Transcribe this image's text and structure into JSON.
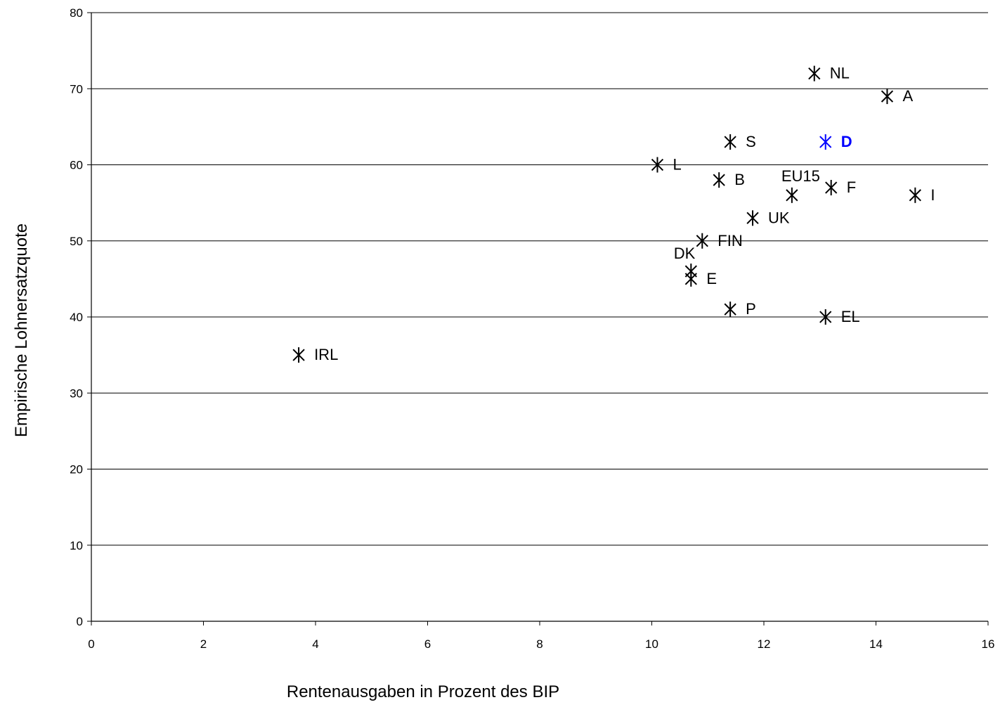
{
  "chart_data": {
    "type": "scatter",
    "title": "",
    "xlabel": "Rentenausgaben in Prozent des BIP",
    "ylabel": "Empirische Lohnersatzquote",
    "xlim": [
      0,
      16
    ],
    "ylim": [
      0,
      80
    ],
    "xticks": [
      0,
      2,
      4,
      6,
      8,
      10,
      12,
      14,
      16
    ],
    "yticks": [
      0,
      10,
      20,
      30,
      40,
      50,
      60,
      70,
      80
    ],
    "grid": "horizontal",
    "legend": "none",
    "marker": "asterisk",
    "default_color": "#000000",
    "highlight_color": "#0000ff",
    "points": [
      {
        "label": "NL",
        "x": 12.9,
        "y": 72,
        "label_pos": "right"
      },
      {
        "label": "A",
        "x": 14.2,
        "y": 69,
        "label_pos": "right"
      },
      {
        "label": "S",
        "x": 11.4,
        "y": 63,
        "label_pos": "right"
      },
      {
        "label": "D",
        "x": 13.1,
        "y": 63,
        "label_pos": "right",
        "highlight": true
      },
      {
        "label": "L",
        "x": 10.1,
        "y": 60,
        "label_pos": "right"
      },
      {
        "label": "B",
        "x": 11.2,
        "y": 58,
        "label_pos": "right"
      },
      {
        "label": "EU15",
        "x": 12.5,
        "y": 56,
        "label_pos": "above-left"
      },
      {
        "label": "F",
        "x": 13.2,
        "y": 57,
        "label_pos": "right"
      },
      {
        "label": "I",
        "x": 14.7,
        "y": 56,
        "label_pos": "right"
      },
      {
        "label": "UK",
        "x": 11.8,
        "y": 53,
        "label_pos": "right"
      },
      {
        "label": "FIN",
        "x": 10.9,
        "y": 50,
        "label_pos": "right"
      },
      {
        "label": "DK",
        "x": 10.7,
        "y": 46,
        "label_pos": "above-left"
      },
      {
        "label": "E",
        "x": 10.7,
        "y": 45,
        "label_pos": "right"
      },
      {
        "label": "P",
        "x": 11.4,
        "y": 41,
        "label_pos": "right"
      },
      {
        "label": "EL",
        "x": 13.1,
        "y": 40,
        "label_pos": "right"
      },
      {
        "label": "IRL",
        "x": 3.7,
        "y": 35,
        "label_pos": "right"
      }
    ]
  }
}
